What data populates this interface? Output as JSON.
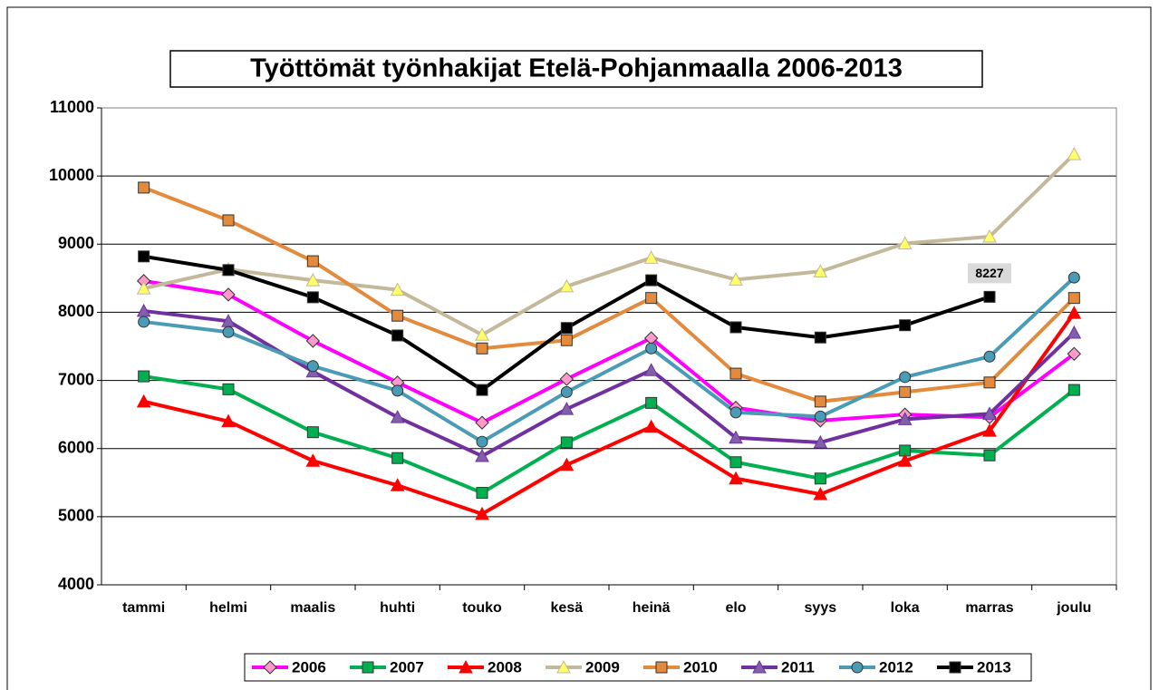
{
  "chart_data": {
    "type": "line",
    "title": "Työttömät työnhakijat Etelä-Pohjanmaalla 2006-2013",
    "categories": [
      "tammi",
      "helmi",
      "maalis",
      "huhti",
      "touko",
      "kesä",
      "heinä",
      "elo",
      "syys",
      "loka",
      "marras",
      "joulu"
    ],
    "ylim": [
      4000,
      11000
    ],
    "yticks": [
      4000,
      5000,
      6000,
      7000,
      8000,
      9000,
      10000,
      11000
    ],
    "grid": true,
    "legend": "bottom",
    "series": [
      {
        "name": "2006",
        "color": "#ff00ff",
        "marker": "diamond",
        "marker_color": "#ff99cc",
        "values": [
          8460,
          8260,
          7580,
          6970,
          6380,
          7020,
          7620,
          6600,
          6410,
          6500,
          6460,
          7390
        ]
      },
      {
        "name": "2007",
        "color": "#00b050",
        "marker": "square",
        "marker_color": "#00b050",
        "values": [
          7060,
          6870,
          6240,
          5860,
          5350,
          6090,
          6670,
          5800,
          5560,
          5970,
          5900,
          6860
        ]
      },
      {
        "name": "2008",
        "color": "#ff0000",
        "marker": "triangle",
        "marker_color": "#ff0000",
        "values": [
          6690,
          6400,
          5820,
          5460,
          5040,
          5760,
          6320,
          5560,
          5330,
          5820,
          6260,
          7990
        ]
      },
      {
        "name": "2009",
        "color": "#c4b89a",
        "marker": "triangle",
        "marker_color": "#ffff66",
        "values": [
          8350,
          8630,
          8470,
          8330,
          7670,
          8380,
          8800,
          8480,
          8600,
          9010,
          9110,
          10320
        ]
      },
      {
        "name": "2010",
        "color": "#e38a3c",
        "marker": "square",
        "marker_color": "#e38a3c",
        "values": [
          9830,
          9350,
          8750,
          7950,
          7470,
          7590,
          8210,
          7100,
          6690,
          6830,
          6970,
          8210
        ]
      },
      {
        "name": "2011",
        "color": "#7030a0",
        "marker": "triangle",
        "marker_color": "#8060a8",
        "values": [
          8020,
          7870,
          7130,
          6460,
          5890,
          6580,
          7150,
          6160,
          6090,
          6430,
          6510,
          7700
        ]
      },
      {
        "name": "2012",
        "color": "#4a9bb5",
        "marker": "circle",
        "marker_color": "#4a9bb5",
        "values": [
          7860,
          7710,
          7210,
          6850,
          6100,
          6830,
          7470,
          6530,
          6470,
          7050,
          7350,
          8510
        ]
      },
      {
        "name": "2013",
        "color": "#000000",
        "marker": "square",
        "marker_color": "#000000",
        "values": [
          8820,
          8620,
          8220,
          7660,
          6860,
          7770,
          8470,
          7780,
          7630,
          7810,
          8227,
          null
        ]
      }
    ],
    "data_labels": [
      {
        "series": 7,
        "index": 10
      }
    ]
  }
}
